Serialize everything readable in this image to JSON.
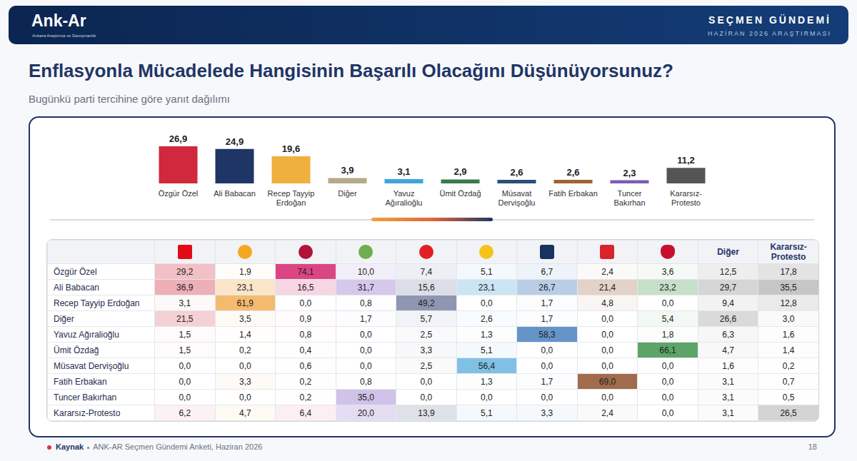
{
  "header": {
    "logo": "Ank-Ar",
    "logo_subtitle": "Ankara Araştırma ve Danışmanlık",
    "series_title": "SEÇMEN GÜNDEMİ",
    "edition": "HAZİRAN 2026 ARAŞTIRMASI"
  },
  "title": "Enflasyonla Mücadelede Hangisinin Başarılı Olacağını Düşünüyorsunuz?",
  "subtitle": "Bugünkü parti tercihine göre yanıt dağılımı",
  "chart_data": {
    "type": "bar",
    "categories": [
      "Özgür Özel",
      "Ali Babacan",
      "Recep Tayyip Erdoğan",
      "Diğer",
      "Yavuz Ağıralioğlu",
      "Ümit Özdağ",
      "Müsavat Dervişoğlu",
      "Fatih Erbakan",
      "Tuncer Bakırhan",
      "Kararsız-Protesto"
    ],
    "values": [
      26.9,
      24.9,
      19.6,
      3.9,
      3.1,
      2.9,
      2.6,
      2.6,
      2.3,
      11.2
    ],
    "value_labels": [
      "26,9",
      "24,9",
      "19,6",
      "3,9",
      "3,1",
      "2,9",
      "2,6",
      "2,6",
      "2,3",
      "11,2"
    ],
    "colors": [
      "#d0283d",
      "#1f3566",
      "#f0b03e",
      "#b5a98a",
      "#3fa6dc",
      "#3a7a4a",
      "#2a4f7a",
      "#a0623a",
      "#7b5cb5",
      "#555555"
    ],
    "ylim": [
      0,
      30
    ],
    "data_labels": true,
    "tick_labels": "x",
    "grid": false
  },
  "table": {
    "columns": [
      {
        "color": "#d9475a"
      },
      {
        "color": "#f0a23a"
      },
      {
        "color": "#d6246e"
      },
      {
        "color": "#8e6cc8"
      },
      {
        "color": "#3d4a7a"
      },
      {
        "color": "#3fa0d8"
      },
      {
        "color": "#1f63b0"
      },
      {
        "color": "#8a4a22"
      },
      {
        "color": "#2f8a3c"
      },
      {
        "label": "Diğer",
        "color": "#888888"
      },
      {
        "label": "Kararsız-Protesto",
        "color": "#777777"
      }
    ],
    "rows": [
      {
        "label": "Özgür Özel",
        "cells": [
          "29,2",
          "1,9",
          "74,1",
          "10,0",
          "7,4",
          "5,1",
          "6,7",
          "2,4",
          "3,6",
          "12,5",
          "17,8"
        ]
      },
      {
        "label": "Ali Babacan",
        "cells": [
          "36,9",
          "23,1",
          "16,5",
          "31,7",
          "15,6",
          "23,1",
          "26,7",
          "21,4",
          "23,2",
          "29,7",
          "35,5"
        ]
      },
      {
        "label": "Recep Tayyip Erdoğan",
        "cells": [
          "3,1",
          "61,9",
          "0,0",
          "0,8",
          "49,2",
          "0,0",
          "1,7",
          "4,8",
          "0,0",
          "9,4",
          "12,8"
        ]
      },
      {
        "label": "Diğer",
        "cells": [
          "21,5",
          "3,5",
          "0,9",
          "1,7",
          "5,7",
          "2,6",
          "1,7",
          "0,0",
          "5,4",
          "26,6",
          "3,0"
        ]
      },
      {
        "label": "Yavuz Ağıralioğlu",
        "cells": [
          "1,5",
          "1,4",
          "0,8",
          "0,0",
          "2,5",
          "1,3",
          "58,3",
          "0,0",
          "1,8",
          "6,3",
          "1,6"
        ]
      },
      {
        "label": "Ümit Özdağ",
        "cells": [
          "1,5",
          "0,2",
          "0,4",
          "0,0",
          "3,3",
          "5,1",
          "0,0",
          "0,0",
          "66,1",
          "4,7",
          "1,4"
        ]
      },
      {
        "label": "Müsavat Dervişoğlu",
        "cells": [
          "0,0",
          "0,0",
          "0,6",
          "0,0",
          "2,5",
          "56,4",
          "0,0",
          "0,0",
          "0,0",
          "1,6",
          "0,2"
        ]
      },
      {
        "label": "Fatih Erbakan",
        "cells": [
          "0,0",
          "3,3",
          "0,2",
          "0,8",
          "0,0",
          "1,3",
          "1,7",
          "69,0",
          "0,0",
          "3,1",
          "0,7"
        ]
      },
      {
        "label": "Tuncer Bakırhan",
        "cells": [
          "0,0",
          "0,0",
          "0,2",
          "35,0",
          "0,0",
          "0,0",
          "0,0",
          "0,0",
          "0,0",
          "3,1",
          "0,5"
        ]
      },
      {
        "label": "Kararsız-Protesto",
        "cells": [
          "6,2",
          "4,7",
          "6,4",
          "20,0",
          "13,9",
          "5,1",
          "3,3",
          "2,4",
          "0,0",
          "3,1",
          "26,5"
        ]
      }
    ]
  },
  "footer": {
    "source_label": "Kaynak",
    "source": "ANK-AR Seçmen Gündemi Anketi, Haziran 2026",
    "page": "18"
  }
}
